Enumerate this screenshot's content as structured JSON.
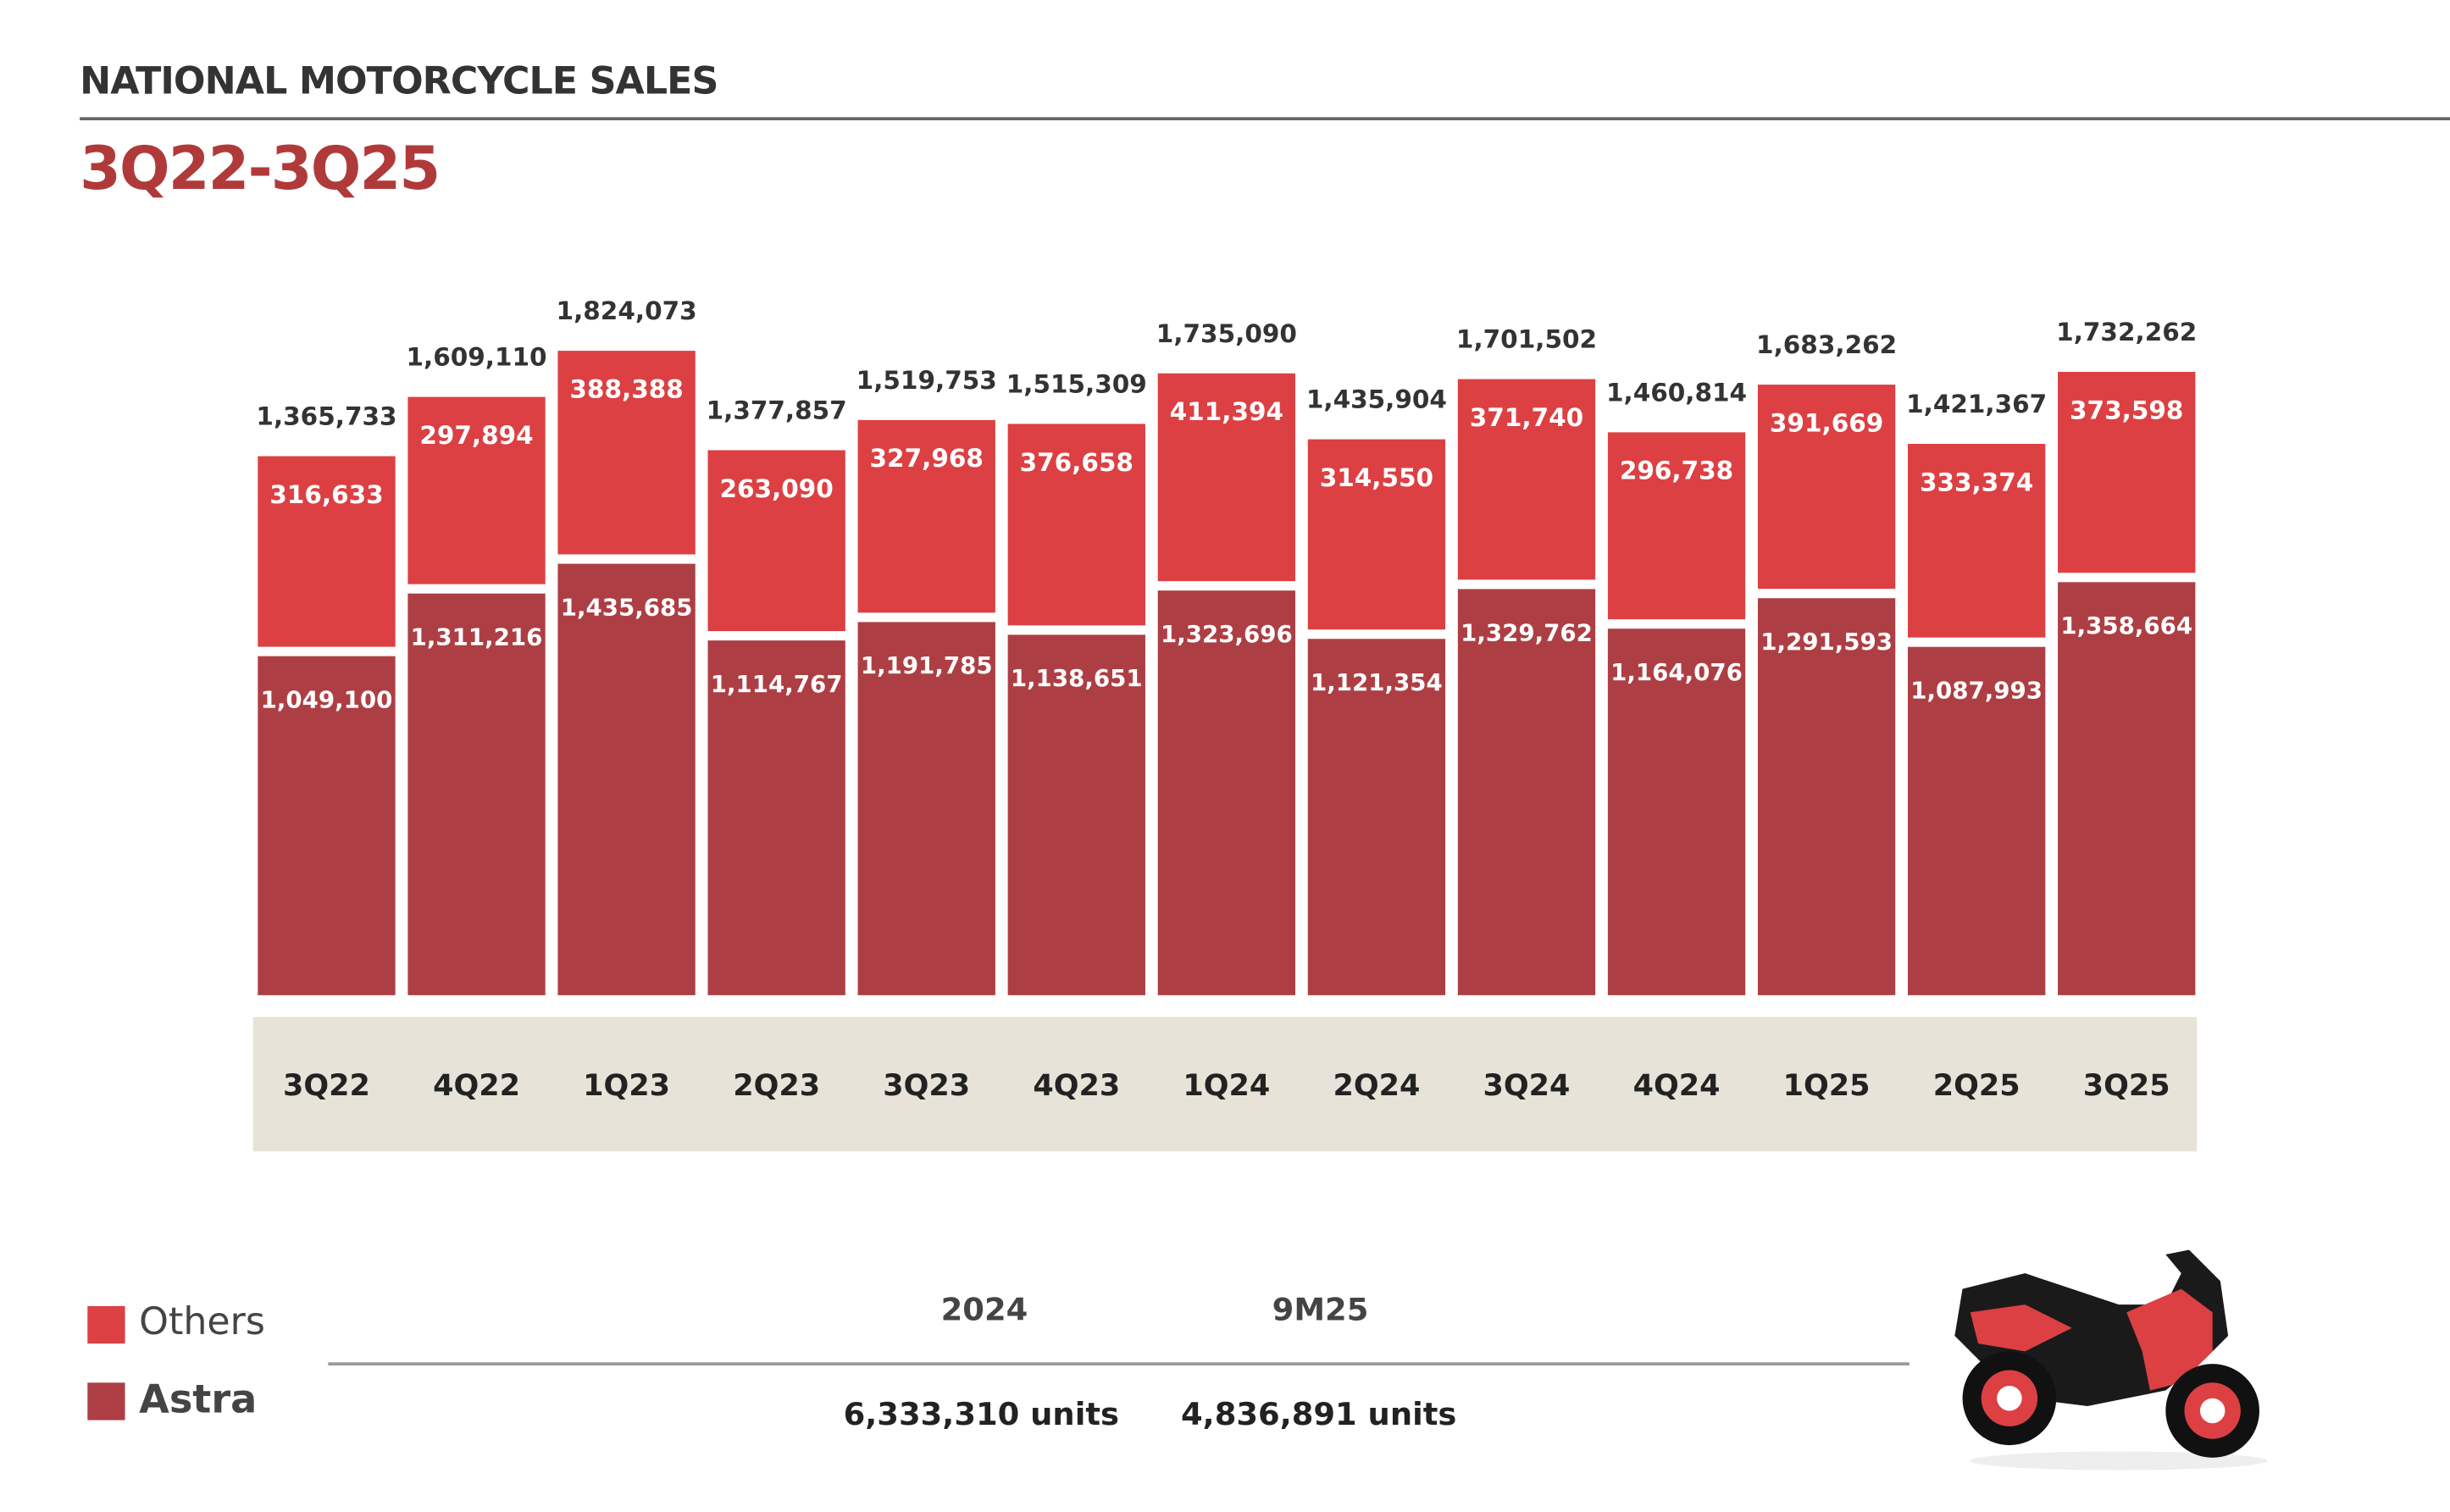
{
  "header": {
    "title": "NATIONAL MOTORCYCLE SALES",
    "subtitle": "3Q22-3Q25"
  },
  "colors": {
    "others": "#dc4043",
    "astra": "#ad3f44",
    "band": "#e8e3d8",
    "title_red": "#b03a3a"
  },
  "chart_data": {
    "type": "bar",
    "stacked": true,
    "categories": [
      "3Q22",
      "4Q22",
      "1Q23",
      "2Q23",
      "3Q23",
      "4Q23",
      "1Q24",
      "2Q24",
      "3Q24",
      "4Q24",
      "1Q25",
      "2Q25",
      "3Q25"
    ],
    "series": [
      {
        "name": "Astra",
        "values": [
          1049100,
          1311216,
          1435685,
          1114767,
          1191785,
          1138651,
          1323696,
          1121354,
          1329762,
          1164076,
          1291593,
          1087993,
          1358664
        ]
      },
      {
        "name": "Others",
        "values": [
          316633,
          297894,
          388388,
          263090,
          327968,
          376658,
          411394,
          314550,
          371740,
          296738,
          391669,
          333374,
          373598
        ]
      }
    ],
    "totals": [
      "1,365,733",
      "1,609,110",
      "1,824,073",
      "1,377,857",
      "1,519,753",
      "1,515,309",
      "1,735,090",
      "1,435,904",
      "1,701,502",
      "1,460,814",
      "1,683,262",
      "1,421,367",
      "1,732,262"
    ],
    "legend_position": "bottom-left",
    "grid": false
  },
  "legend": {
    "others": "Others",
    "astra": "Astra"
  },
  "summary": {
    "headers": [
      "2024",
      "9M25"
    ],
    "values": [
      "6,333,310 units",
      "4,836,891 units"
    ]
  }
}
